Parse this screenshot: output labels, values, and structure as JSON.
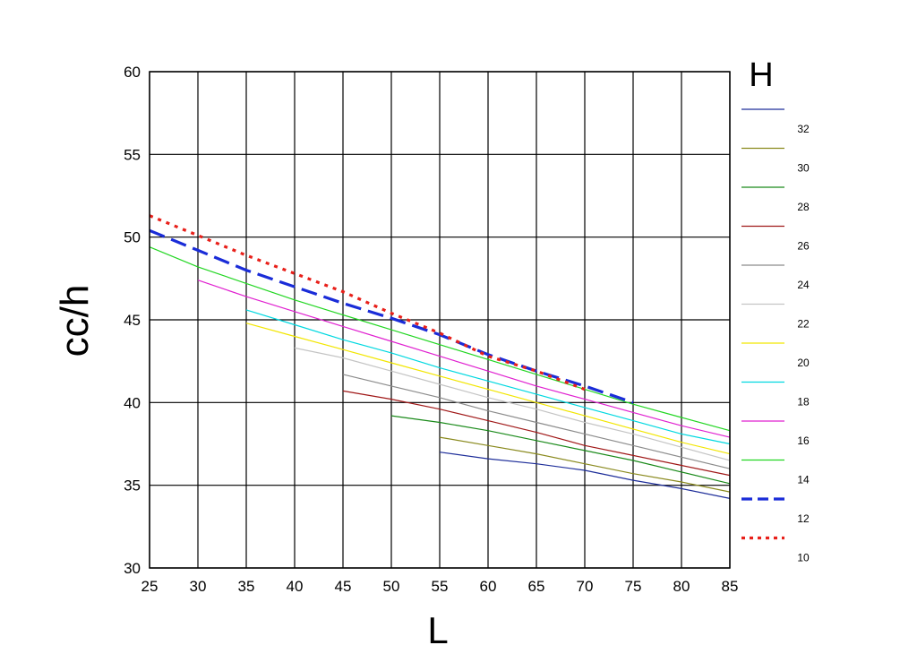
{
  "chart_data": {
    "type": "line",
    "title": "",
    "xlabel": "L",
    "ylabel": "cc/h",
    "legend_title": "H",
    "legend_position": "right",
    "xlim": [
      25,
      85
    ],
    "ylim": [
      30,
      60
    ],
    "xticks": [
      "25",
      "30",
      "35",
      "40",
      "45",
      "50",
      "55",
      "60",
      "65",
      "70",
      "75",
      "80",
      "85"
    ],
    "yticks": [
      "30",
      "35",
      "40",
      "45",
      "50",
      "55",
      "60"
    ],
    "grid": true,
    "series": [
      {
        "name": "32",
        "color": "#1f2f9a",
        "dash": "solid",
        "width": 1.2,
        "points": [
          [
            55,
            37.0
          ],
          [
            60,
            36.6
          ],
          [
            65,
            36.3
          ],
          [
            70,
            35.9
          ],
          [
            75,
            35.3
          ],
          [
            80,
            34.8
          ],
          [
            85,
            34.2
          ]
        ]
      },
      {
        "name": "30",
        "color": "#8a8a1e",
        "dash": "solid",
        "width": 1.2,
        "points": [
          [
            55,
            37.9
          ],
          [
            60,
            37.4
          ],
          [
            65,
            36.9
          ],
          [
            70,
            36.3
          ],
          [
            75,
            35.7
          ],
          [
            80,
            35.2
          ],
          [
            85,
            34.6
          ]
        ]
      },
      {
        "name": "28",
        "color": "#1a8a1a",
        "dash": "solid",
        "width": 1.2,
        "points": [
          [
            50,
            39.2
          ],
          [
            55,
            38.8
          ],
          [
            60,
            38.3
          ],
          [
            65,
            37.7
          ],
          [
            70,
            37.1
          ],
          [
            75,
            36.5
          ],
          [
            80,
            35.8
          ],
          [
            85,
            35.1
          ]
        ]
      },
      {
        "name": "26",
        "color": "#a01818",
        "dash": "solid",
        "width": 1.2,
        "points": [
          [
            45,
            40.7
          ],
          [
            50,
            40.2
          ],
          [
            55,
            39.6
          ],
          [
            60,
            38.9
          ],
          [
            65,
            38.2
          ],
          [
            70,
            37.4
          ],
          [
            75,
            36.8
          ],
          [
            80,
            36.2
          ],
          [
            85,
            35.6
          ]
        ]
      },
      {
        "name": "24",
        "color": "#8c8c8c",
        "dash": "solid",
        "width": 1.2,
        "points": [
          [
            45,
            41.7
          ],
          [
            50,
            41.0
          ],
          [
            55,
            40.3
          ],
          [
            60,
            39.5
          ],
          [
            65,
            38.8
          ],
          [
            70,
            38.1
          ],
          [
            75,
            37.4
          ],
          [
            80,
            36.7
          ],
          [
            85,
            36.0
          ]
        ]
      },
      {
        "name": "22",
        "color": "#c4c4c4",
        "dash": "solid",
        "width": 1.2,
        "points": [
          [
            40,
            43.3
          ],
          [
            45,
            42.7
          ],
          [
            50,
            41.9
          ],
          [
            55,
            41.1
          ],
          [
            60,
            40.3
          ],
          [
            65,
            39.6
          ],
          [
            70,
            38.8
          ],
          [
            75,
            38.1
          ],
          [
            80,
            37.3
          ],
          [
            85,
            36.5
          ]
        ]
      },
      {
        "name": "20",
        "color": "#f2e600",
        "dash": "solid",
        "width": 1.2,
        "points": [
          [
            35,
            44.8
          ],
          [
            40,
            44.0
          ],
          [
            45,
            43.2
          ],
          [
            50,
            42.4
          ],
          [
            55,
            41.6
          ],
          [
            60,
            40.8
          ],
          [
            65,
            40.0
          ],
          [
            70,
            39.2
          ],
          [
            75,
            38.4
          ],
          [
            80,
            37.6
          ],
          [
            85,
            36.9
          ]
        ]
      },
      {
        "name": "18",
        "color": "#00d8e0",
        "dash": "solid",
        "width": 1.2,
        "points": [
          [
            35,
            45.6
          ],
          [
            40,
            44.7
          ],
          [
            45,
            43.8
          ],
          [
            50,
            43.0
          ],
          [
            55,
            42.1
          ],
          [
            60,
            41.3
          ],
          [
            65,
            40.5
          ],
          [
            70,
            39.7
          ],
          [
            75,
            38.9
          ],
          [
            80,
            38.1
          ],
          [
            85,
            37.5
          ]
        ]
      },
      {
        "name": "16",
        "color": "#e020d0",
        "dash": "solid",
        "width": 1.2,
        "points": [
          [
            30,
            47.4
          ],
          [
            35,
            46.4
          ],
          [
            40,
            45.5
          ],
          [
            45,
            44.6
          ],
          [
            50,
            43.7
          ],
          [
            55,
            42.8
          ],
          [
            60,
            41.9
          ],
          [
            65,
            41.0
          ],
          [
            70,
            40.2
          ],
          [
            75,
            39.4
          ],
          [
            80,
            38.6
          ],
          [
            85,
            37.9
          ]
        ]
      },
      {
        "name": "14",
        "color": "#22d622",
        "dash": "solid",
        "width": 1.2,
        "points": [
          [
            25,
            49.4
          ],
          [
            30,
            48.2
          ],
          [
            35,
            47.2
          ],
          [
            40,
            46.2
          ],
          [
            45,
            45.3
          ],
          [
            50,
            44.4
          ],
          [
            55,
            43.5
          ],
          [
            60,
            42.6
          ],
          [
            65,
            41.7
          ],
          [
            70,
            40.8
          ],
          [
            75,
            39.9
          ],
          [
            80,
            39.1
          ],
          [
            85,
            38.3
          ]
        ]
      },
      {
        "name": "12",
        "color": "#1a2cd8",
        "dash": "dashed",
        "width": 3.2,
        "points": [
          [
            25,
            50.4
          ],
          [
            30,
            49.2
          ],
          [
            35,
            48.0
          ],
          [
            40,
            47.0
          ],
          [
            45,
            46.0
          ],
          [
            50,
            45.1
          ],
          [
            55,
            44.1
          ],
          [
            60,
            42.9
          ],
          [
            65,
            41.9
          ],
          [
            70,
            41.0
          ],
          [
            75,
            40.0
          ]
        ]
      },
      {
        "name": "10",
        "color": "#e8201a",
        "dash": "dotted",
        "width": 3.2,
        "points": [
          [
            25,
            51.3
          ],
          [
            30,
            50.1
          ],
          [
            35,
            48.9
          ],
          [
            40,
            47.8
          ],
          [
            45,
            46.7
          ],
          [
            50,
            45.4
          ],
          [
            55,
            44.2
          ],
          [
            60,
            42.8
          ],
          [
            65,
            41.9
          ],
          [
            70,
            40.8
          ]
        ]
      }
    ]
  }
}
